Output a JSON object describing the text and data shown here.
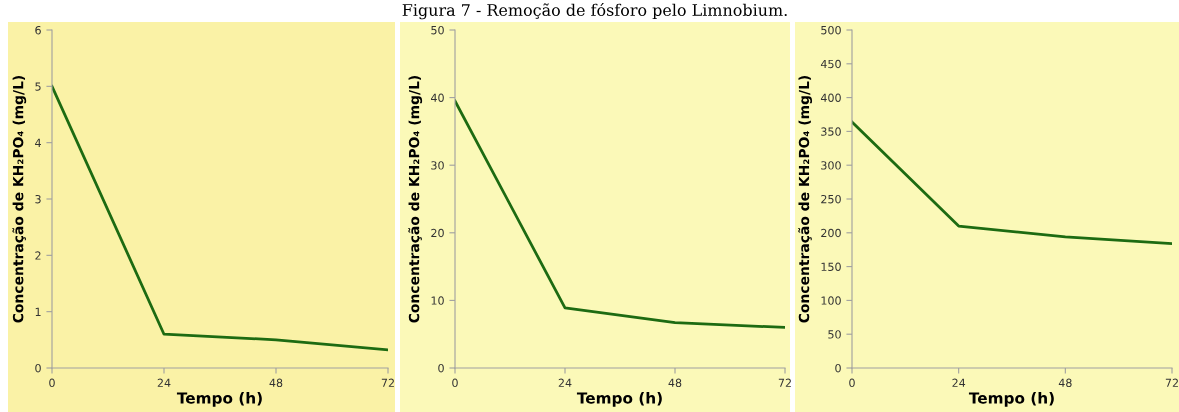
{
  "chart_data": [
    {
      "type": "line",
      "xlabel": "Tempo (h)",
      "ylabel": "Concentração de KH₂PO₄ (mg/L)",
      "x": [
        0,
        24,
        48,
        72
      ],
      "xlim": [
        0,
        72
      ],
      "xticks": [
        0,
        24,
        48,
        72
      ],
      "ylim": [
        0,
        6
      ],
      "yticks": [
        0,
        1,
        2,
        3,
        4,
        5,
        6
      ],
      "grid": false,
      "legend": false,
      "series": [
        {
          "color": "#1d6b12",
          "values": [
            5.0,
            0.6,
            0.5,
            0.32
          ]
        }
      ]
    },
    {
      "type": "line",
      "title": "Figura 7 - Remoção de fósforo pelo Limnobium.",
      "xlabel": "Tempo (h)",
      "ylabel": "Concentração de KH₂PO₄ (mg/L)",
      "x": [
        0,
        24,
        48,
        72
      ],
      "xlim": [
        0,
        72
      ],
      "xticks": [
        0,
        24,
        48,
        72
      ],
      "ylim": [
        0,
        50
      ],
      "yticks": [
        0,
        10,
        20,
        30,
        40,
        50
      ],
      "grid": false,
      "legend": false,
      "series": [
        {
          "color": "#1d6b12",
          "values": [
            39.5,
            8.9,
            6.7,
            6.0
          ]
        }
      ]
    },
    {
      "type": "line",
      "xlabel": "Tempo (h)",
      "ylabel": "Concentração de KH₂PO₄ (mg/L)",
      "x": [
        0,
        24,
        48,
        72
      ],
      "xlim": [
        0,
        72
      ],
      "xticks": [
        0,
        24,
        48,
        72
      ],
      "ylim": [
        0,
        500
      ],
      "yticks": [
        0,
        50,
        100,
        150,
        200,
        250,
        300,
        350,
        400,
        450,
        500
      ],
      "grid": false,
      "legend": false,
      "series": [
        {
          "color": "#1d6b12",
          "values": [
            364,
            210,
            194,
            184
          ]
        }
      ]
    }
  ]
}
